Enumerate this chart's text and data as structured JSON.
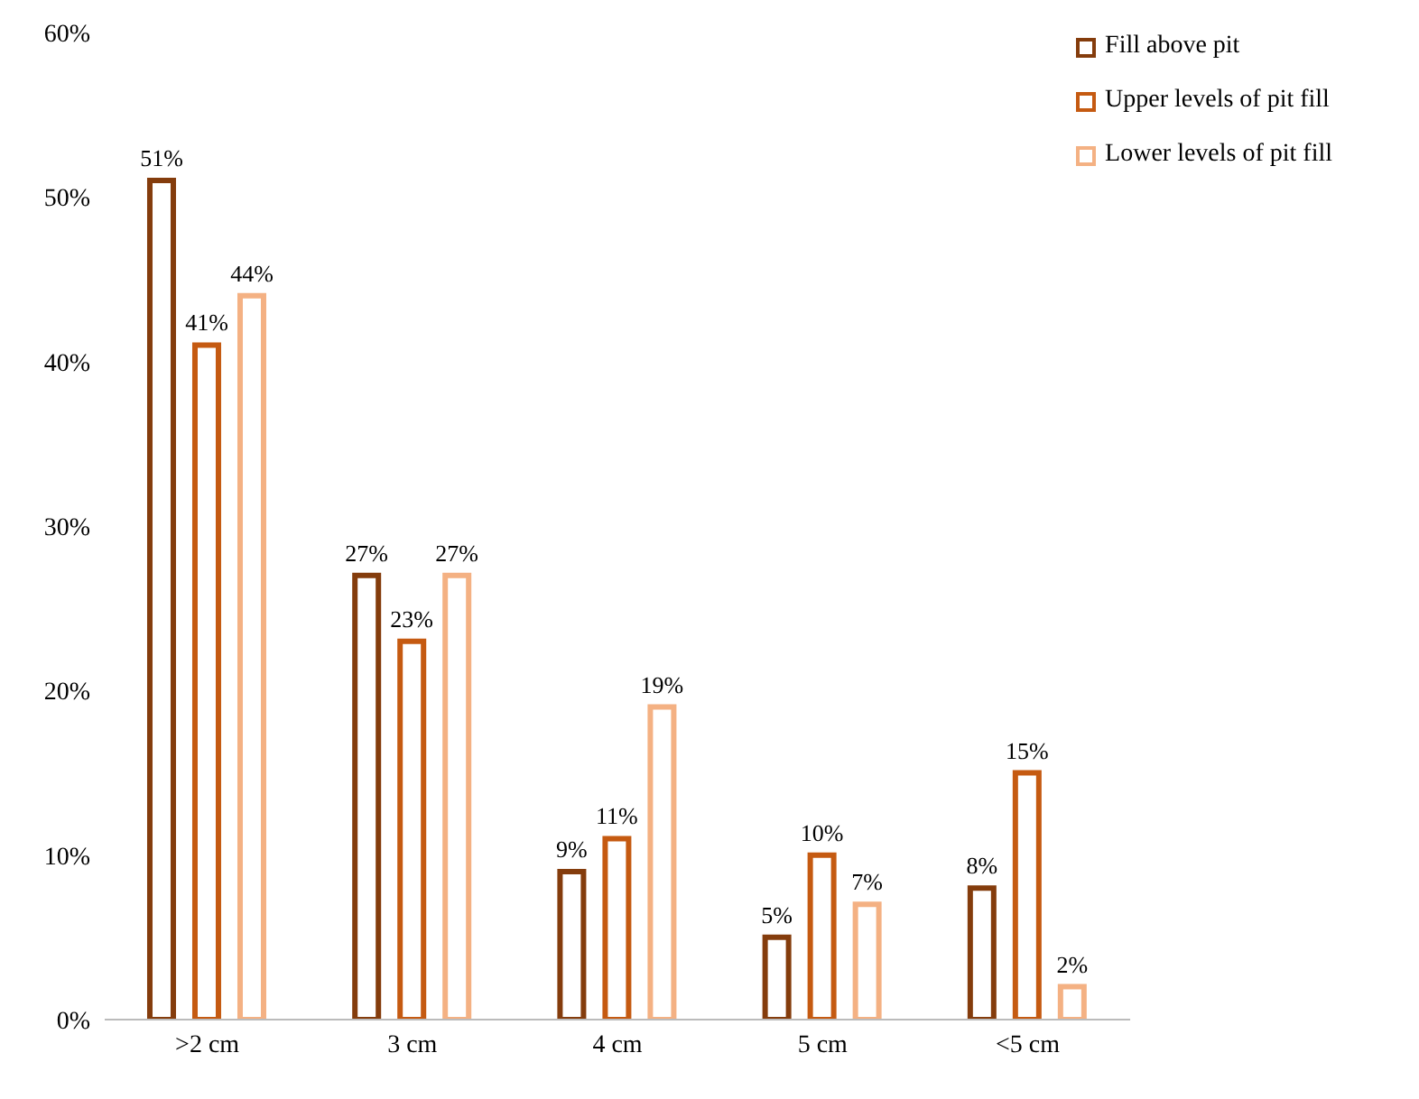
{
  "chart_data": {
    "type": "bar",
    "categories": [
      ">2 cm",
      "3 cm",
      "4 cm",
      "5 cm",
      "<5 cm"
    ],
    "series": [
      {
        "name": "Fill above pit",
        "color": "#843c0c",
        "values": [
          51,
          27,
          9,
          5,
          8
        ],
        "value_labels": [
          "51%",
          "27%",
          "9%",
          "5%",
          "8%"
        ]
      },
      {
        "name": "Upper levels of pit fill",
        "color": "#c55a11",
        "values": [
          41,
          23,
          11,
          10,
          15
        ],
        "value_labels": [
          "41%",
          "23%",
          "11%",
          "10%",
          "15%"
        ]
      },
      {
        "name": "Lower levels of pit fill",
        "color": "#f4b183",
        "values": [
          44,
          27,
          19,
          7,
          2
        ],
        "value_labels": [
          "44%",
          "27%",
          "19%",
          "7%",
          "2%"
        ]
      }
    ],
    "ylim": [
      0,
      60
    ],
    "yticks": [
      {
        "value": 0,
        "label": "0%"
      },
      {
        "value": 10,
        "label": "10%"
      },
      {
        "value": 20,
        "label": "20%"
      },
      {
        "value": 30,
        "label": "30%"
      },
      {
        "value": 40,
        "label": "40%"
      },
      {
        "value": 50,
        "label": "50%"
      },
      {
        "value": 60,
        "label": "60%"
      }
    ],
    "grid": false,
    "legend": "top right"
  }
}
